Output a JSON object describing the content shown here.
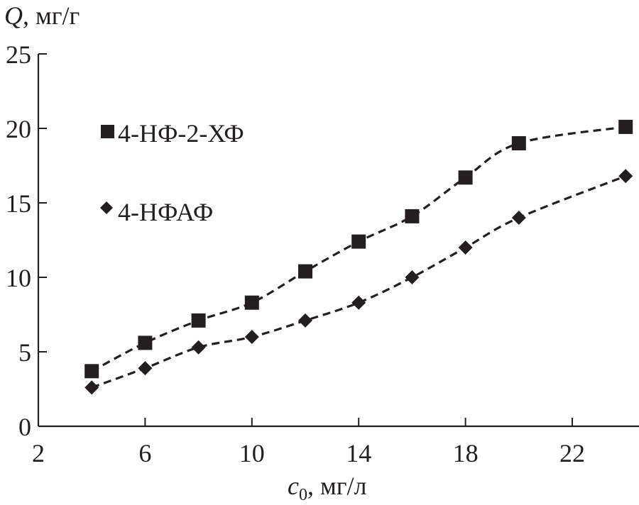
{
  "chart_data": {
    "type": "scatter",
    "ylabel_var": "Q",
    "ylabel_unit": ", мг/г",
    "xlabel_var": "c",
    "xlabel_sub": "0",
    "xlabel_unit": ", мг/л",
    "xlim": [
      2,
      24.5
    ],
    "ylim": [
      0,
      25
    ],
    "xticks": [
      2,
      6,
      10,
      14,
      18,
      22
    ],
    "yticks": [
      0,
      5,
      10,
      15,
      20,
      25
    ],
    "grid": false,
    "legend_position": "top-left",
    "color": "#231f20",
    "series": [
      {
        "name": "4-НФ-2-ХФ",
        "marker": "square",
        "line": "dashed",
        "x": [
          4,
          6,
          8,
          10,
          12,
          14,
          16,
          18,
          20,
          24
        ],
        "y": [
          3.7,
          5.6,
          7.1,
          8.3,
          10.4,
          12.4,
          14.1,
          16.7,
          19.0,
          20.1
        ]
      },
      {
        "name": "4-НФАФ",
        "marker": "diamond",
        "line": "dashed",
        "x": [
          4,
          6,
          8,
          10,
          12,
          14,
          16,
          18,
          20,
          24
        ],
        "y": [
          2.6,
          3.9,
          5.3,
          6.0,
          7.1,
          8.3,
          10.0,
          12.0,
          14.0,
          16.8
        ]
      }
    ]
  }
}
